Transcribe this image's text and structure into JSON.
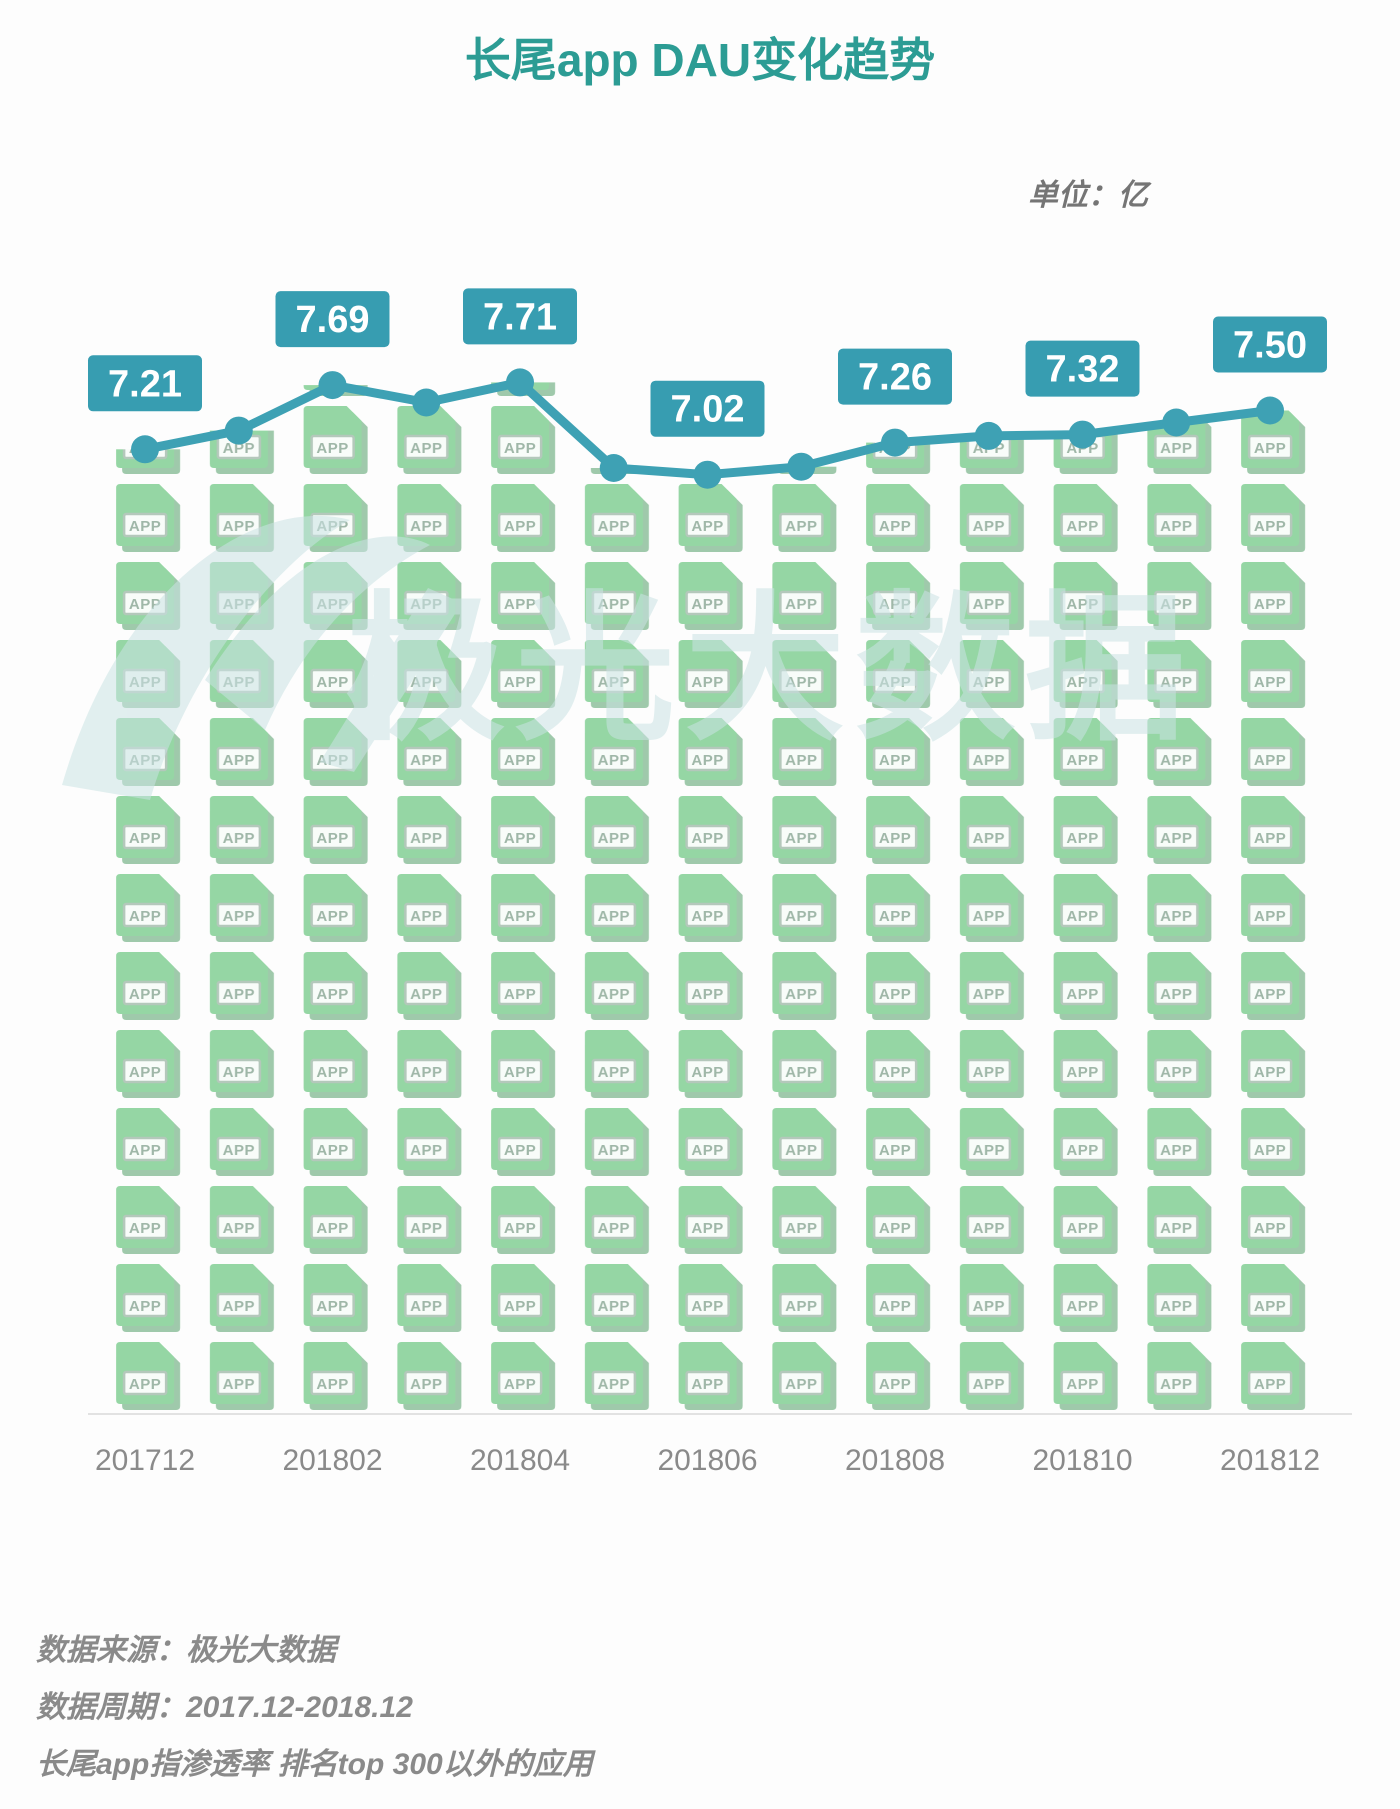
{
  "header": {
    "title": "长尾app DAU变化趋势",
    "unit_label": "单位：亿"
  },
  "watermark": {
    "text": "极光大数据"
  },
  "chart_data": {
    "type": "line",
    "title": "长尾app DAU变化趋势",
    "unit": "亿",
    "x": [
      "201712",
      "201801",
      "201802",
      "201803",
      "201804",
      "201805",
      "201806",
      "201807",
      "201808",
      "201809",
      "201810",
      "201811",
      "201812"
    ],
    "values": [
      7.21,
      7.35,
      7.69,
      7.56,
      7.71,
      7.07,
      7.02,
      7.08,
      7.26,
      7.31,
      7.32,
      7.41,
      7.5
    ],
    "point_labels": [
      "7.21",
      "",
      "7.69",
      "",
      "7.71",
      "",
      "7.02",
      "",
      "7.26",
      "",
      "7.32",
      "",
      "7.50"
    ],
    "x_tick_labels": [
      "201712",
      "201802",
      "201804",
      "201806",
      "201808",
      "201810",
      "201812"
    ],
    "ylim": [
      0,
      8
    ],
    "grid": false,
    "legend": false,
    "bar_icon_text": "APP",
    "note": "unlabeled point values estimated from pixel positions"
  },
  "footnotes": {
    "source": "数据来源：极光大数据",
    "period": "数据周期：2017.12-2018.12",
    "definition": "长尾app指渗透率 排名top 300以外的应用"
  },
  "colors": {
    "title": "#2C9C94",
    "line": "#3EA1B4",
    "label_box": "#379DB1",
    "label_text": "#FFFFFF",
    "icon_green": "#95D6A4",
    "icon_back_green": "#9FC9AB",
    "icon_label_border": "#B4C8BB",
    "icon_label_text": "#9FB7A8",
    "axis_line": "#E2E2E2",
    "tick_text": "#8A8A8A",
    "footnote_text": "#8A8A8A",
    "watermark": "#CBE3E4"
  }
}
